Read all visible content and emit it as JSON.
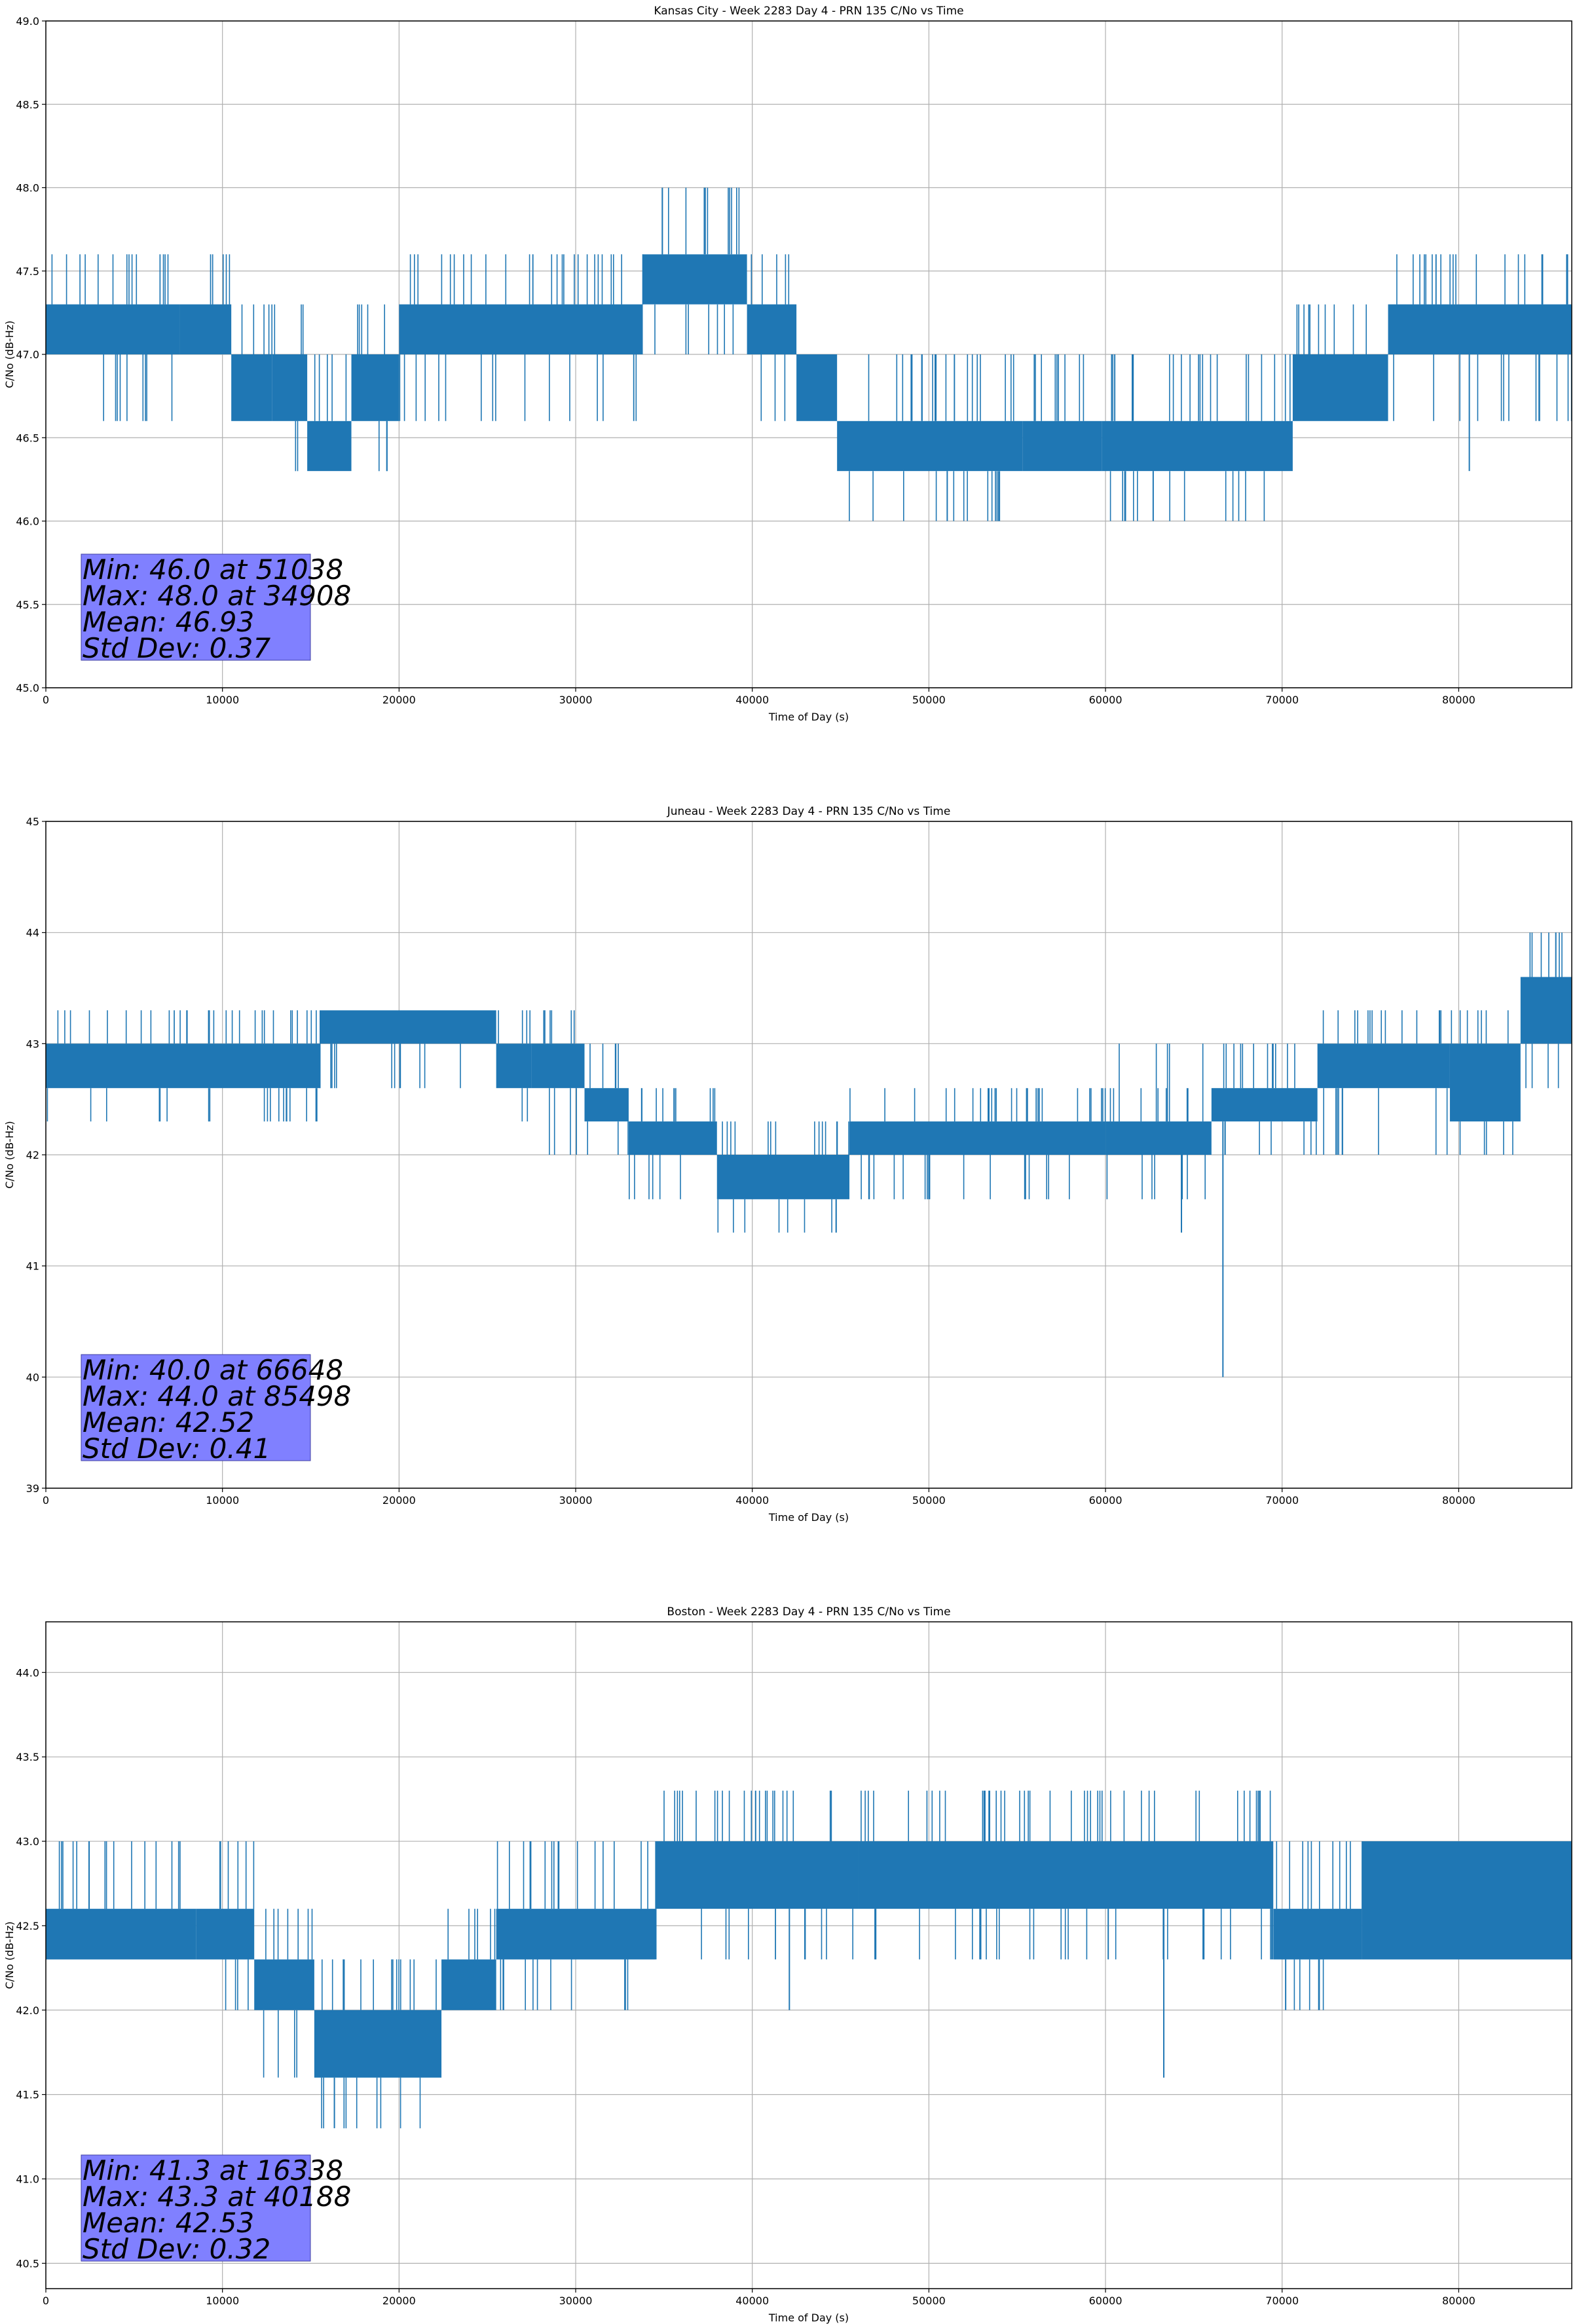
{
  "colors": {
    "series": "#1f77b4",
    "grid": "#b0b0b0",
    "stats_box": "#8080ff"
  },
  "chart_data": [
    {
      "type": "line",
      "title": "Kansas City - Week 2283 Day 4 - PRN 135 C/No vs Time",
      "xlabel": "Time of Day (s)",
      "ylabel": "C/No (dB-Hz)",
      "xlim": [
        0,
        86400
      ],
      "ylim": [
        45.0,
        49.0
      ],
      "xticks": [
        0,
        10000,
        20000,
        30000,
        40000,
        50000,
        60000,
        70000,
        80000
      ],
      "xtick_labels": [
        "0",
        "10000",
        "20000",
        "30000",
        "40000",
        "50000",
        "60000",
        "70000",
        "80000"
      ],
      "yticks": [
        45.0,
        45.5,
        46.0,
        46.5,
        47.0,
        47.5,
        48.0,
        48.5,
        49.0
      ],
      "ytick_labels": [
        "45.0",
        "45.5",
        "46.0",
        "46.5",
        "47.0",
        "47.5",
        "48.0",
        "48.5",
        "49.0"
      ],
      "grid": true,
      "quantization_step": 0.33,
      "band_segments": [
        {
          "x": [
            0,
            7600
          ],
          "low": 47.0,
          "high": 47.3,
          "spikes_up": [
            47.6
          ],
          "spikes_down": [
            46.6
          ]
        },
        {
          "x": [
            7600,
            10500
          ],
          "low": 47.0,
          "high": 47.3,
          "spikes_up": [
            47.6
          ],
          "spikes_down": []
        },
        {
          "x": [
            10500,
            12800
          ],
          "low": 46.6,
          "high": 47.0,
          "spikes_up": [
            47.3
          ],
          "spikes_down": [
            46.6
          ]
        },
        {
          "x": [
            12800,
            14800
          ],
          "low": 46.6,
          "high": 47.0,
          "spikes_up": [
            47.3
          ],
          "spikes_down": [
            46.3
          ]
        },
        {
          "x": [
            14800,
            17300
          ],
          "low": 46.3,
          "high": 46.6,
          "spikes_up": [
            47.0
          ],
          "spikes_down": []
        },
        {
          "x": [
            17300,
            20000
          ],
          "low": 46.6,
          "high": 47.0,
          "spikes_up": [
            47.3
          ],
          "spikes_down": [
            46.3
          ]
        },
        {
          "x": [
            20000,
            33800
          ],
          "low": 47.0,
          "high": 47.3,
          "spikes_up": [
            47.6
          ],
          "spikes_down": [
            46.6
          ]
        },
        {
          "x": [
            33800,
            39700
          ],
          "low": 47.3,
          "high": 47.6,
          "spikes_up": [
            48.0
          ],
          "spikes_down": [
            47.0
          ]
        },
        {
          "x": [
            39700,
            42500
          ],
          "low": 47.0,
          "high": 47.3,
          "spikes_up": [
            47.6
          ],
          "spikes_down": [
            46.6
          ]
        },
        {
          "x": [
            42500,
            44800
          ],
          "low": 46.6,
          "high": 47.0,
          "spikes_up": [
            47.0
          ],
          "spikes_down": [
            46.6
          ]
        },
        {
          "x": [
            44800,
            55300
          ],
          "low": 46.3,
          "high": 46.6,
          "spikes_up": [
            47.0
          ],
          "spikes_down": [
            46.0
          ]
        },
        {
          "x": [
            55300,
            59800
          ],
          "low": 46.3,
          "high": 46.6,
          "spikes_up": [
            47.0
          ],
          "spikes_down": []
        },
        {
          "x": [
            59800,
            70600
          ],
          "low": 46.3,
          "high": 46.6,
          "spikes_up": [
            47.0
          ],
          "spikes_down": [
            46.0
          ]
        },
        {
          "x": [
            70600,
            76000
          ],
          "low": 46.6,
          "high": 47.0,
          "spikes_up": [
            47.3
          ],
          "spikes_down": []
        },
        {
          "x": [
            76000,
            86400
          ],
          "low": 47.0,
          "high": 47.3,
          "spikes_up": [
            47.6
          ],
          "spikes_down": [
            46.6
          ]
        }
      ],
      "outliers": [
        {
          "x": 34908,
          "y": 48.0
        },
        {
          "x": 51038,
          "y": 46.0
        },
        {
          "x": 62700,
          "y": 46.0
        },
        {
          "x": 80600,
          "y": 46.3
        }
      ],
      "stats": {
        "min": "Min: 46.0 at 51038",
        "max": "Max: 48.0 at 34908",
        "mean": "Mean: 46.93",
        "std": "Std Dev: 0.37"
      }
    },
    {
      "type": "line",
      "title": "Juneau - Week 2283 Day 4 - PRN 135 C/No vs Time",
      "xlabel": "Time of Day (s)",
      "ylabel": "C/No (dB-Hz)",
      "xlim": [
        0,
        86400
      ],
      "ylim": [
        39,
        45
      ],
      "xticks": [
        0,
        10000,
        20000,
        30000,
        40000,
        50000,
        60000,
        70000,
        80000
      ],
      "xtick_labels": [
        "0",
        "10000",
        "20000",
        "30000",
        "40000",
        "50000",
        "60000",
        "70000",
        "80000"
      ],
      "yticks": [
        39,
        40,
        41,
        42,
        43,
        44,
        45
      ],
      "ytick_labels": [
        "39",
        "40",
        "41",
        "42",
        "43",
        "44",
        "45"
      ],
      "grid": true,
      "quantization_step": 0.33,
      "band_segments": [
        {
          "x": [
            0,
            15500
          ],
          "low": 42.6,
          "high": 43.0,
          "spikes_up": [
            43.3
          ],
          "spikes_down": [
            42.3
          ]
        },
        {
          "x": [
            15500,
            25500
          ],
          "low": 43.0,
          "high": 43.3,
          "spikes_up": [],
          "spikes_down": [
            42.6
          ]
        },
        {
          "x": [
            25500,
            27500
          ],
          "low": 42.6,
          "high": 43.0,
          "spikes_up": [
            43.3
          ],
          "spikes_down": [
            42.3
          ]
        },
        {
          "x": [
            27500,
            30500
          ],
          "low": 42.6,
          "high": 43.0,
          "spikes_up": [
            43.3
          ],
          "spikes_down": [
            42.0
          ]
        },
        {
          "x": [
            30500,
            33000
          ],
          "low": 42.3,
          "high": 42.6,
          "spikes_up": [
            43.0
          ],
          "spikes_down": [
            42.0
          ]
        },
        {
          "x": [
            33000,
            38000
          ],
          "low": 42.0,
          "high": 42.3,
          "spikes_up": [
            42.6
          ],
          "spikes_down": [
            41.6
          ]
        },
        {
          "x": [
            38000,
            45500
          ],
          "low": 41.6,
          "high": 42.0,
          "spikes_up": [
            42.3
          ],
          "spikes_down": [
            41.3
          ]
        },
        {
          "x": [
            45500,
            60000
          ],
          "low": 42.0,
          "high": 42.3,
          "spikes_up": [
            42.6
          ],
          "spikes_down": [
            41.6
          ]
        },
        {
          "x": [
            60000,
            66000
          ],
          "low": 42.0,
          "high": 42.3,
          "spikes_up": [
            42.6,
            43.0
          ],
          "spikes_down": [
            41.6
          ]
        },
        {
          "x": [
            66000,
            72000
          ],
          "low": 42.3,
          "high": 42.6,
          "spikes_up": [
            43.0
          ],
          "spikes_down": [
            42.0
          ]
        },
        {
          "x": [
            72000,
            79500
          ],
          "low": 42.6,
          "high": 43.0,
          "spikes_up": [
            43.3
          ],
          "spikes_down": [
            42.0
          ]
        },
        {
          "x": [
            79500,
            83500
          ],
          "low": 42.3,
          "high": 43.0,
          "spikes_up": [
            43.3
          ],
          "spikes_down": [
            42.0
          ]
        },
        {
          "x": [
            83500,
            86400
          ],
          "low": 43.0,
          "high": 43.6,
          "spikes_up": [
            44.0
          ],
          "spikes_down": [
            42.6
          ]
        }
      ],
      "outliers": [
        {
          "x": 64300,
          "y": 41.3
        },
        {
          "x": 66648,
          "y": 40.0
        },
        {
          "x": 85498,
          "y": 44.0
        }
      ],
      "stats": {
        "min": "Min: 40.0 at 66648",
        "max": "Max: 44.0 at 85498",
        "mean": "Mean: 42.52",
        "std": "Std Dev: 0.41"
      }
    },
    {
      "type": "line",
      "title": "Boston - Week 2283 Day 4 - PRN 135 C/No vs Time",
      "xlabel": "Time of Day (s)",
      "ylabel": "C/No (dB-Hz)",
      "xlim": [
        0,
        86400
      ],
      "ylim": [
        40.35,
        44.3
      ],
      "xticks": [
        0,
        10000,
        20000,
        30000,
        40000,
        50000,
        60000,
        70000,
        80000
      ],
      "xtick_labels": [
        "0",
        "10000",
        "20000",
        "30000",
        "40000",
        "50000",
        "60000",
        "70000",
        "80000"
      ],
      "yticks": [
        40.5,
        41.0,
        41.5,
        42.0,
        42.5,
        43.0,
        43.5,
        44.0
      ],
      "ytick_labels": [
        "40.5",
        "41.0",
        "41.5",
        "42.0",
        "42.5",
        "43.0",
        "43.5",
        "44.0"
      ],
      "grid": true,
      "quantization_step": 0.33,
      "band_segments": [
        {
          "x": [
            0,
            8500
          ],
          "low": 42.3,
          "high": 42.6,
          "spikes_up": [
            43.0
          ],
          "spikes_down": []
        },
        {
          "x": [
            8500,
            11800
          ],
          "low": 42.3,
          "high": 42.6,
          "spikes_up": [
            43.0
          ],
          "spikes_down": [
            42.0
          ]
        },
        {
          "x": [
            11800,
            15200
          ],
          "low": 42.0,
          "high": 42.3,
          "spikes_up": [
            42.6
          ],
          "spikes_down": [
            41.6
          ]
        },
        {
          "x": [
            15200,
            22400
          ],
          "low": 41.6,
          "high": 42.0,
          "spikes_up": [
            42.3
          ],
          "spikes_down": [
            41.3
          ]
        },
        {
          "x": [
            22400,
            25500
          ],
          "low": 42.0,
          "high": 42.3,
          "spikes_up": [
            42.6
          ],
          "spikes_down": []
        },
        {
          "x": [
            25500,
            34500
          ],
          "low": 42.3,
          "high": 42.6,
          "spikes_up": [
            43.0
          ],
          "spikes_down": [
            42.0
          ]
        },
        {
          "x": [
            34500,
            46000
          ],
          "low": 42.6,
          "high": 43.0,
          "spikes_up": [
            43.3
          ],
          "spikes_down": [
            42.3
          ]
        },
        {
          "x": [
            46000,
            69500
          ],
          "low": 42.6,
          "high": 43.0,
          "spikes_up": [
            43.3
          ],
          "spikes_down": [
            42.3
          ]
        },
        {
          "x": [
            69500,
            74500
          ],
          "low": 42.3,
          "high": 42.6,
          "spikes_up": [
            43.0
          ],
          "spikes_down": [
            42.0
          ]
        },
        {
          "x": [
            74500,
            86400
          ],
          "low": 42.3,
          "high": 43.0,
          "spikes_up": [],
          "spikes_down": [
            42.3
          ]
        }
      ],
      "outliers": [
        {
          "x": 16338,
          "y": 41.3
        },
        {
          "x": 40188,
          "y": 43.3
        },
        {
          "x": 42100,
          "y": 42.0
        },
        {
          "x": 63300,
          "y": 41.6
        },
        {
          "x": 70200,
          "y": 42.0
        }
      ],
      "stats": {
        "min": "Min: 41.3 at 16338",
        "max": "Max: 43.3 at 40188",
        "mean": "Mean: 42.53",
        "std": "Std Dev: 0.32"
      }
    }
  ]
}
